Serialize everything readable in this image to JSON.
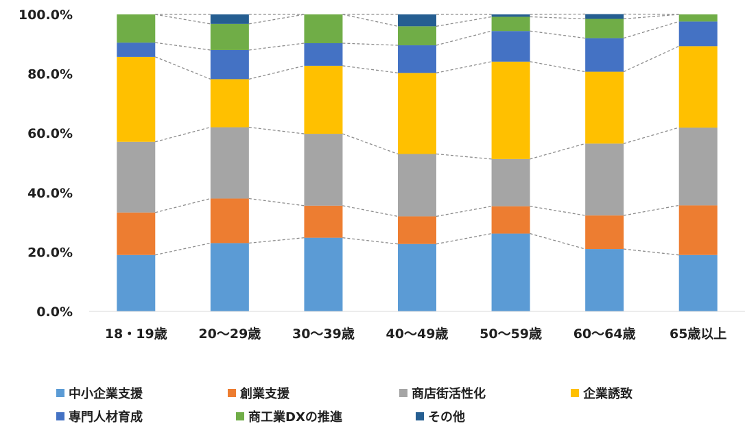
{
  "chart_data": {
    "type": "bar",
    "stacked": "percent",
    "title": "",
    "xlabel": "",
    "ylabel": "",
    "ylim": [
      0,
      100
    ],
    "yticks": [
      "0.0%",
      "20.0%",
      "40.0%",
      "60.0%",
      "80.0%",
      "100.0%"
    ],
    "categories": [
      "18・19歳",
      "20～29歳",
      "30～39歳",
      "40～49歳",
      "50～59歳",
      "60～64歳",
      "65歳以上"
    ],
    "series": [
      {
        "name": "中小企業支援",
        "color": "#5b9bd5",
        "values": [
          19.0,
          23.0,
          24.8,
          22.7,
          26.2,
          21.0,
          19.0
        ]
      },
      {
        "name": "創業支援",
        "color": "#ed7d31",
        "values": [
          14.3,
          15.0,
          10.8,
          9.3,
          9.2,
          11.3,
          16.7
        ]
      },
      {
        "name": "商店街活性化",
        "color": "#a5a5a5",
        "values": [
          23.8,
          24.0,
          24.2,
          21.0,
          15.9,
          24.2,
          26.2
        ]
      },
      {
        "name": "企業誘致",
        "color": "#ffc000",
        "values": [
          28.6,
          16.2,
          22.9,
          27.3,
          32.8,
          24.2,
          27.4
        ]
      },
      {
        "name": "専門人材育成",
        "color": "#4472c4",
        "values": [
          4.8,
          9.8,
          7.6,
          9.3,
          10.3,
          11.3,
          8.3
        ]
      },
      {
        "name": "商工業DXの推進",
        "color": "#70ad47",
        "values": [
          9.5,
          8.8,
          9.7,
          6.4,
          4.8,
          6.5,
          2.4
        ]
      },
      {
        "name": "その他",
        "color": "#255e91",
        "values": [
          0.0,
          3.2,
          0.0,
          4.0,
          0.8,
          1.6,
          0.0
        ]
      }
    ],
    "series_lines": true,
    "grid": false,
    "legend_position": "bottom"
  }
}
